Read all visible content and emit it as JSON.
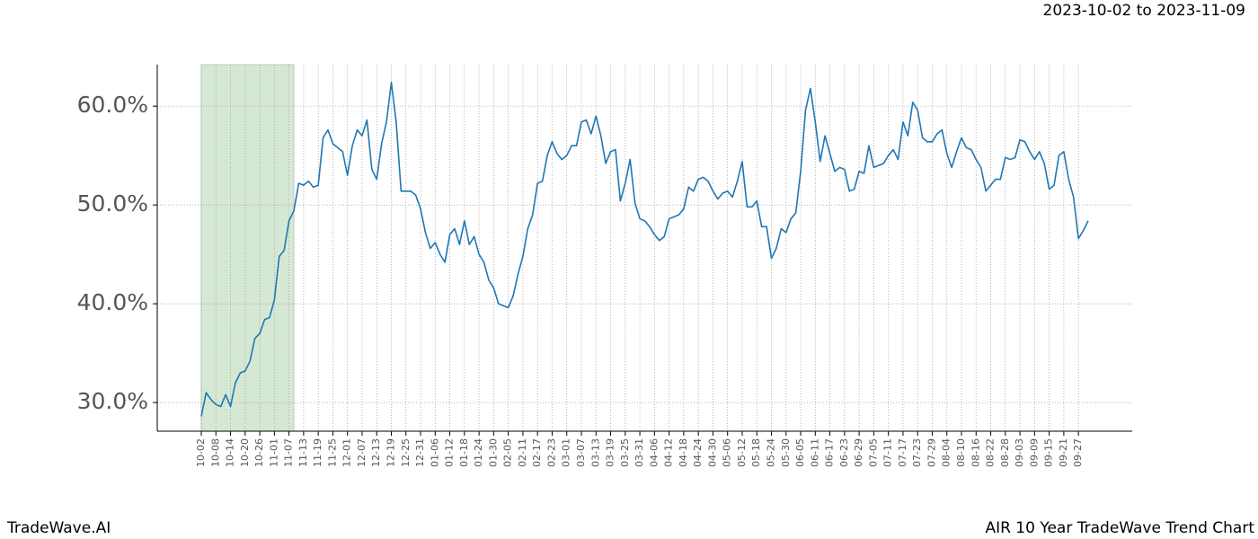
{
  "chart_data": {
    "type": "line",
    "header_right": "2023-10-02 to 2023-11-09",
    "footer_left": "TradeWave.AI",
    "footer_right": "AIR 10 Year TradeWave Trend Chart",
    "color": "#1f77b4",
    "highlight": {
      "from": 0,
      "to": 19,
      "color": "#d5e8d4"
    },
    "grid": true,
    "ylim": [
      27.1,
      64.2
    ],
    "yticks": [
      {
        "value": 30,
        "label": "30.0%"
      },
      {
        "value": 40,
        "label": "40.0%"
      },
      {
        "value": 50,
        "label": "50.0%"
      },
      {
        "value": 60,
        "label": "60.0%"
      }
    ],
    "categories": [
      "10-02",
      null,
      null,
      "10-08",
      null,
      null,
      "10-14",
      null,
      null,
      "10-20",
      null,
      null,
      "10-26",
      null,
      null,
      "11-01",
      null,
      null,
      "11-07",
      null,
      null,
      "11-13",
      null,
      null,
      "11-19",
      null,
      null,
      "11-25",
      null,
      null,
      "12-01",
      null,
      null,
      "12-07",
      null,
      null,
      "12-13",
      null,
      null,
      "12-19",
      null,
      null,
      "12-25",
      null,
      null,
      "12-31",
      null,
      null,
      "01-06",
      null,
      null,
      "01-12",
      null,
      null,
      "01-18",
      null,
      null,
      "01-24",
      null,
      null,
      "01-30",
      null,
      null,
      "02-05",
      null,
      null,
      "02-11",
      null,
      null,
      "02-17",
      null,
      null,
      "02-23",
      null,
      null,
      "03-01",
      null,
      null,
      "03-07",
      null,
      null,
      "03-13",
      null,
      null,
      "03-19",
      null,
      null,
      "03-25",
      null,
      null,
      "03-31",
      null,
      null,
      "04-06",
      null,
      null,
      "04-12",
      null,
      null,
      "04-18",
      null,
      null,
      "04-24",
      null,
      null,
      "04-30",
      null,
      null,
      "05-06",
      null,
      null,
      "05-12",
      null,
      null,
      "05-18",
      null,
      null,
      "05-24",
      null,
      null,
      "05-30",
      null,
      null,
      "06-05",
      null,
      null,
      "06-11",
      null,
      null,
      "06-17",
      null,
      null,
      "06-23",
      null,
      null,
      "06-29",
      null,
      null,
      "07-05",
      null,
      null,
      "07-11",
      null,
      null,
      "07-17",
      null,
      null,
      "07-23",
      null,
      null,
      "07-29",
      null,
      null,
      "08-04",
      null,
      null,
      "08-10",
      null,
      null,
      "08-16",
      null,
      null,
      "08-22",
      null,
      null,
      "08-28",
      null,
      null,
      "09-03",
      null,
      null,
      "09-09",
      null,
      null,
      "09-15",
      null,
      null,
      "09-21",
      null,
      null,
      "09-27",
      null,
      null
    ],
    "values": [
      28.6,
      31.0,
      30.3,
      29.8,
      29.6,
      30.8,
      29.6,
      32.0,
      33.0,
      33.2,
      34.2,
      36.5,
      37.0,
      38.4,
      38.6,
      40.4,
      44.8,
      45.4,
      48.4,
      49.4,
      52.2,
      52.0,
      52.4,
      51.8,
      52.0,
      56.8,
      57.6,
      56.2,
      55.8,
      55.4,
      53.0,
      56.0,
      57.6,
      57.0,
      58.6,
      53.6,
      52.6,
      56.2,
      58.4,
      62.4,
      58.4,
      51.4,
      51.4,
      51.4,
      51.0,
      49.6,
      47.2,
      45.6,
      46.2,
      45.0,
      44.2,
      47.0,
      47.6,
      46.0,
      48.4,
      46.0,
      46.8,
      45.0,
      44.2,
      42.4,
      41.6,
      40.0,
      39.8,
      39.6,
      40.8,
      43.0,
      44.8,
      47.6,
      49.0,
      52.2,
      52.4,
      55.0,
      56.4,
      55.2,
      54.6,
      55.0,
      56.0,
      56.0,
      58.4,
      58.6,
      57.2,
      59.0,
      57.0,
      54.2,
      55.4,
      55.6,
      50.4,
      52.2,
      54.6,
      50.2,
      48.6,
      48.4,
      47.8,
      47.0,
      46.4,
      46.8,
      48.6,
      48.8,
      49.0,
      49.6,
      51.8,
      51.4,
      52.6,
      52.8,
      52.4,
      51.4,
      50.6,
      51.2,
      51.4,
      50.8,
      52.4,
      54.4,
      49.8,
      49.8,
      50.4,
      47.8,
      47.8,
      44.6,
      45.6,
      47.6,
      47.2,
      48.6,
      49.2,
      53.4,
      59.6,
      61.8,
      58.4,
      54.4,
      57.0,
      55.2,
      53.4,
      53.8,
      53.6,
      51.4,
      51.6,
      53.4,
      53.2,
      56.0,
      53.8,
      54.0,
      54.2,
      55.0,
      55.6,
      54.6,
      58.4,
      57.0,
      60.4,
      59.6,
      56.8,
      56.4,
      56.4,
      57.2,
      57.6,
      55.2,
      53.8,
      55.4,
      56.8,
      55.8,
      55.6,
      54.6,
      53.8,
      51.4,
      52.0,
      52.6,
      52.6,
      54.8,
      54.6,
      54.8,
      56.6,
      56.4,
      55.4,
      54.6,
      55.4,
      54.2,
      51.6,
      52.0,
      55.0,
      55.4,
      52.6,
      50.8,
      46.6,
      47.4,
      48.4
    ]
  }
}
